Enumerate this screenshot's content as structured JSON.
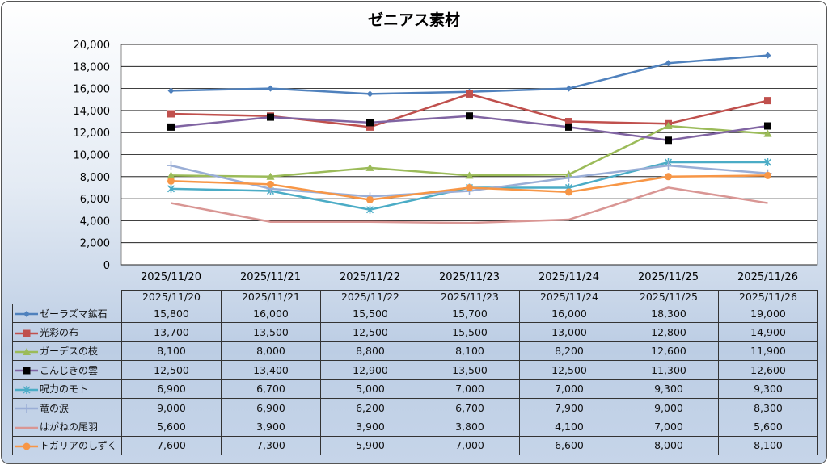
{
  "chart_data": {
    "type": "line",
    "title": "ゼニアス素材",
    "categories": [
      "2025/11/20",
      "2025/11/21",
      "2025/11/22",
      "2025/11/23",
      "2025/11/24",
      "2025/11/25",
      "2025/11/26"
    ],
    "ylim": [
      0,
      20000
    ],
    "yticks": [
      "0",
      "2,000",
      "4,000",
      "6,000",
      "8,000",
      "10,000",
      "12,000",
      "14,000",
      "16,000",
      "18,000",
      "20,000"
    ],
    "grid": true,
    "legend": "data-table",
    "series": [
      {
        "name": "ゼーラズマ鉱石",
        "color": "#4f81bd",
        "marker": "diamond",
        "values": [
          15800,
          16000,
          15500,
          15700,
          16000,
          18300,
          19000
        ],
        "labels": [
          "15,800",
          "16,000",
          "15,500",
          "15,700",
          "16,000",
          "18,300",
          "19,000"
        ]
      },
      {
        "name": "光彩の布",
        "color": "#c0504d",
        "marker": "square",
        "values": [
          13700,
          13500,
          12500,
          15500,
          13000,
          12800,
          14900
        ],
        "labels": [
          "13,700",
          "13,500",
          "12,500",
          "15,500",
          "13,000",
          "12,800",
          "14,900"
        ]
      },
      {
        "name": "ガーデスの枝",
        "color": "#9bbb59",
        "marker": "triangle",
        "values": [
          8100,
          8000,
          8800,
          8100,
          8200,
          12600,
          11900
        ],
        "labels": [
          "8,100",
          "8,000",
          "8,800",
          "8,100",
          "8,200",
          "12,600",
          "11,900"
        ]
      },
      {
        "name": "こんじきの雲",
        "color": "#8064a2",
        "marker": "black-square",
        "values": [
          12500,
          13400,
          12900,
          13500,
          12500,
          11300,
          12600
        ],
        "labels": [
          "12,500",
          "13,400",
          "12,900",
          "13,500",
          "12,500",
          "11,300",
          "12,600"
        ]
      },
      {
        "name": "呪力のモト",
        "color": "#4bacc6",
        "marker": "asterisk",
        "values": [
          6900,
          6700,
          5000,
          7000,
          7000,
          9300,
          9300
        ],
        "labels": [
          "6,900",
          "6,700",
          "5,000",
          "7,000",
          "7,000",
          "9,300",
          "9,300"
        ]
      },
      {
        "name": "竜の涙",
        "color": "#9aaed6",
        "marker": "plus",
        "values": [
          9000,
          6900,
          6200,
          6700,
          7900,
          9000,
          8300
        ],
        "labels": [
          "9,000",
          "6,900",
          "6,200",
          "6,700",
          "7,900",
          "9,000",
          "8,300"
        ]
      },
      {
        "name": "はがねの尾羽",
        "color": "#d99694",
        "marker": "none",
        "values": [
          5600,
          3900,
          3900,
          3800,
          4100,
          7000,
          5600
        ],
        "labels": [
          "5,600",
          "3,900",
          "3,900",
          "3,800",
          "4,100",
          "7,000",
          "5,600"
        ]
      },
      {
        "name": "トガリアのしずく",
        "color": "#f79646",
        "marker": "circle",
        "values": [
          7600,
          7300,
          5900,
          7000,
          6600,
          8000,
          8100
        ],
        "labels": [
          "7,600",
          "7,300",
          "5,900",
          "7,000",
          "6,600",
          "8,000",
          "8,100"
        ]
      }
    ]
  }
}
